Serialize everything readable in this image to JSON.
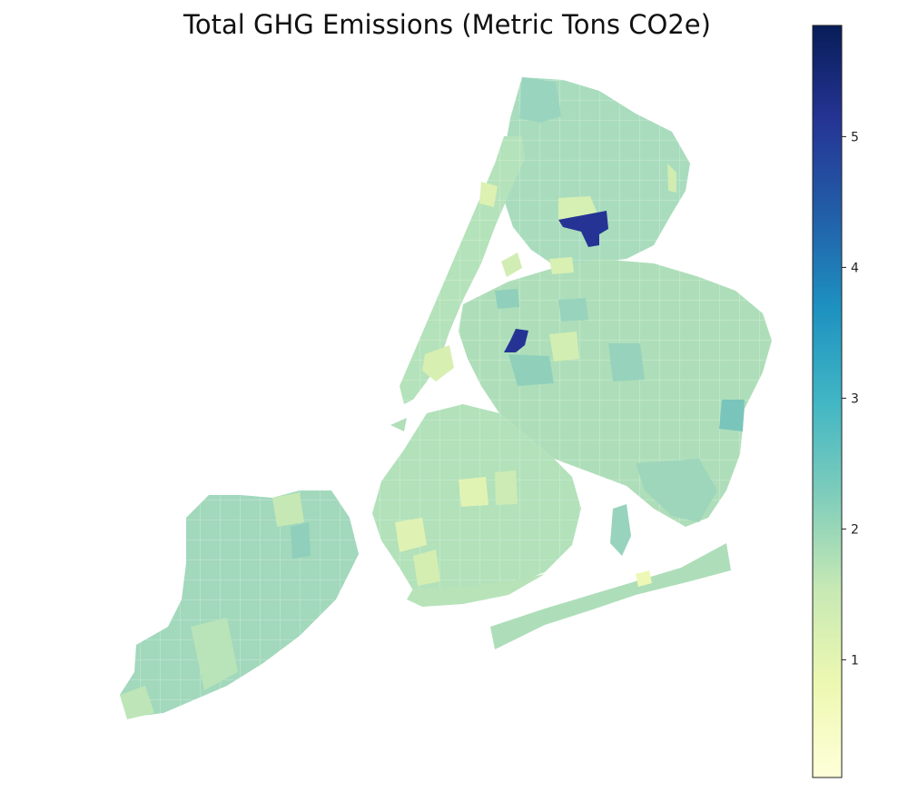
{
  "title": "Total GHG Emissions (Metric Tons CO2e)",
  "colorbar": {
    "min": 0.1,
    "max": 5.85,
    "ticks": [
      1,
      2,
      3,
      4,
      5
    ],
    "tick_labels": [
      "1",
      "2",
      "3",
      "4",
      "5"
    ],
    "colormap": "YlGnBu",
    "stops": [
      "#ffffd9",
      "#edf8b1",
      "#c7e9b4",
      "#7fcdbb",
      "#41b6c4",
      "#1d91c0",
      "#225ea8",
      "#253494",
      "#081d58"
    ]
  },
  "map": {
    "region": "New York City",
    "boroughs": [
      "Manhattan",
      "Bronx",
      "Queens",
      "Brooklyn",
      "Staten Island"
    ],
    "base_value": 2.0,
    "highlights": [
      {
        "area": "Bronx (east)",
        "value": 5.4
      },
      {
        "area": "Queens (LaGuardia)",
        "value": 5.2
      },
      {
        "area": "Queens (JFK)",
        "value": 2.6
      },
      {
        "area": "Brooklyn",
        "value": 1.3
      }
    ]
  }
}
